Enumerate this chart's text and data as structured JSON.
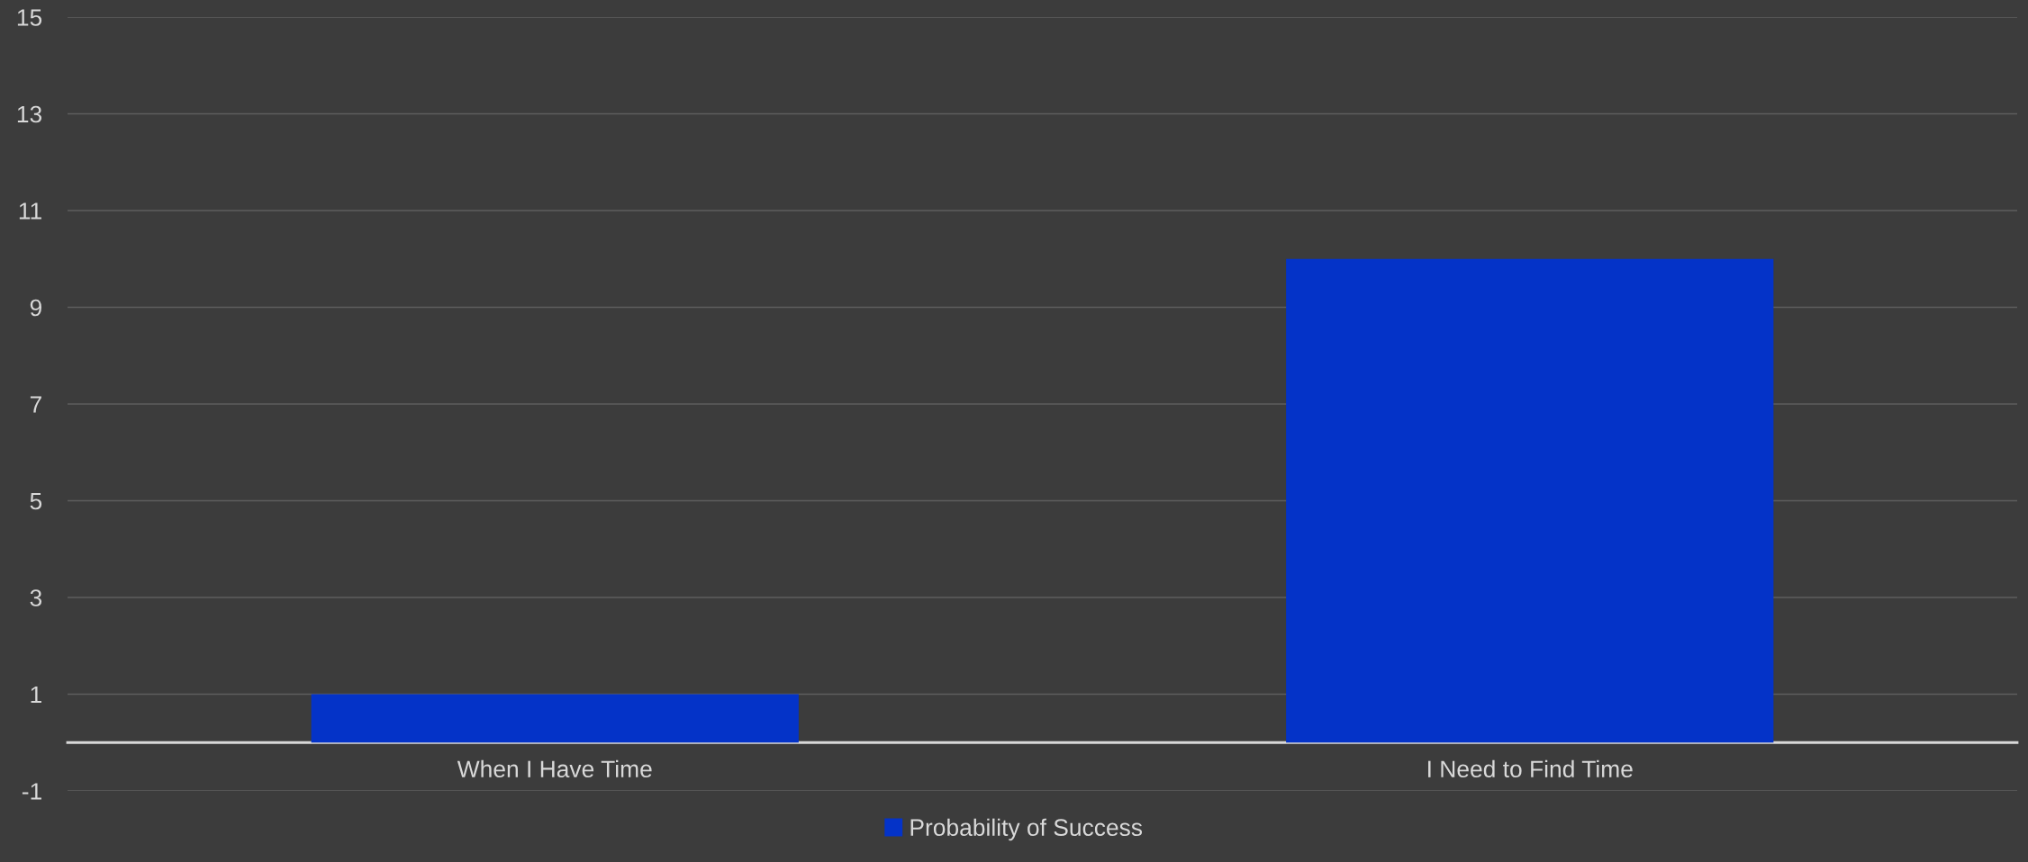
{
  "chart_data": {
    "type": "bar",
    "categories": [
      "When I Have Time",
      "I Need to Find Time"
    ],
    "series": [
      {
        "name": "Probability of Success",
        "color": "#0433c8",
        "values": [
          1,
          10
        ]
      }
    ],
    "ylim": [
      -1,
      15
    ],
    "yticks": [
      -1,
      1,
      3,
      5,
      7,
      9,
      11,
      13,
      15
    ],
    "grid": "y",
    "legend": "bottom"
  }
}
